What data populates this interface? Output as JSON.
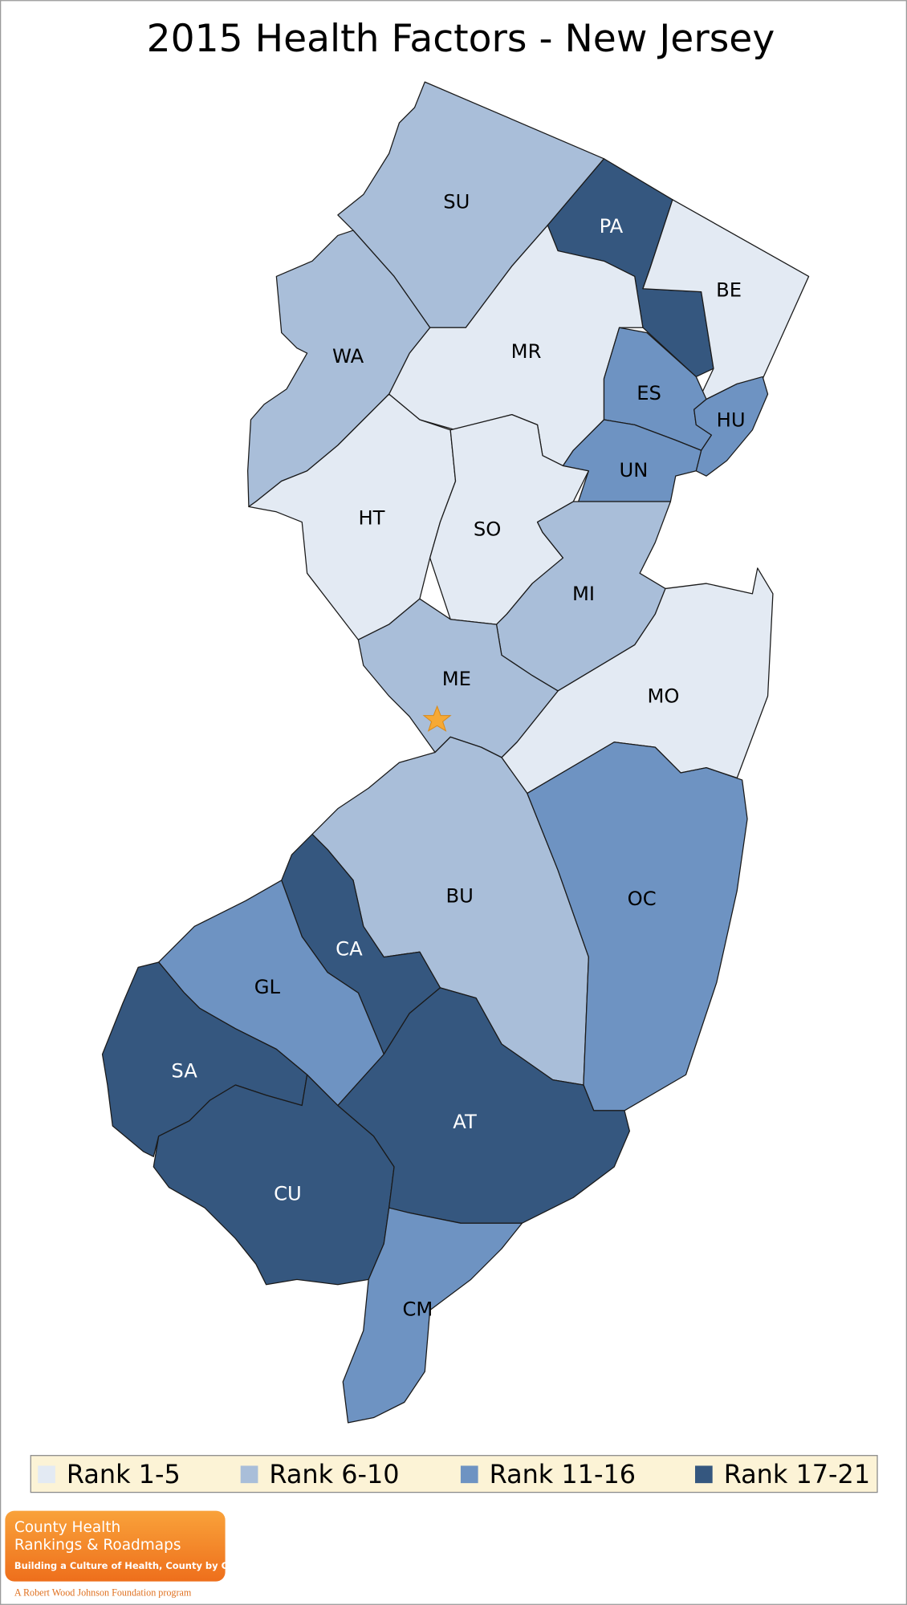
{
  "header": {
    "title": "2015 Health Factors - New Jersey"
  },
  "legend": {
    "items": [
      {
        "label": "Rank 1-5",
        "color": "#e3eaf3"
      },
      {
        "label": "Rank 6-10",
        "color": "#a9bed9"
      },
      {
        "label": "Rank 11-16",
        "color": "#6e93c2"
      },
      {
        "label": "Rank 17-21",
        "color": "#35577f"
      }
    ]
  },
  "counties": [
    {
      "label": "SU",
      "color": "#a9bed9"
    },
    {
      "label": "PA",
      "color": "#35577f"
    },
    {
      "label": "BE",
      "color": "#e3eaf3"
    },
    {
      "label": "MR",
      "color": "#e3eaf3"
    },
    {
      "label": "WA",
      "color": "#a9bed9"
    },
    {
      "label": "HT",
      "color": "#e3eaf3"
    },
    {
      "label": "SO",
      "color": "#e3eaf3"
    },
    {
      "label": "ES",
      "color": "#6e93c2"
    },
    {
      "label": "HU",
      "color": "#6e93c2"
    },
    {
      "label": "UN",
      "color": "#6e93c2"
    },
    {
      "label": "MI",
      "color": "#a9bed9"
    },
    {
      "label": "MO",
      "color": "#e3eaf3"
    },
    {
      "label": "ME",
      "color": "#a9bed9"
    },
    {
      "label": "BU",
      "color": "#a9bed9"
    },
    {
      "label": "OC",
      "color": "#6e93c2"
    },
    {
      "label": "CA",
      "color": "#35577f"
    },
    {
      "label": "GL",
      "color": "#6e93c2"
    },
    {
      "label": "SA",
      "color": "#35577f"
    },
    {
      "label": "CU",
      "color": "#35577f"
    },
    {
      "label": "AT",
      "color": "#35577f"
    },
    {
      "label": "CM",
      "color": "#6e93c2"
    }
  ],
  "logo": {
    "line1": "County Health",
    "line2": "Rankings & Roadmaps",
    "tagline": "Building a Culture of Health, County by County",
    "footer": "A Robert Wood Johnson Foundation program"
  }
}
